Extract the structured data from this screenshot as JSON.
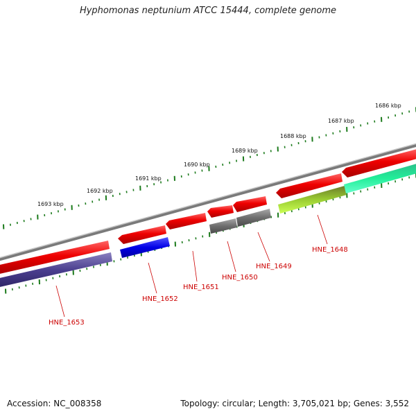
{
  "title": "Hyphomonas neptunium ATCC 15444, complete genome",
  "footer": {
    "accession": "Accession: NC_008358",
    "summary": "Topology: circular; Length: 3,705,021 bp; Genes: 3,552"
  },
  "colors": {
    "backbone": "#7a7a7a",
    "tick_ruler": "#1b7a1b",
    "label": "#cc0000"
  },
  "kbp_labels": [
    "1686 kbp",
    "1687 kbp",
    "1688 kbp",
    "1689 kbp",
    "1690 kbp",
    "1691 kbp",
    "1692 kbp",
    "1693 kbp"
  ],
  "genes": [
    {
      "id": "HNE_1653",
      "color": "#4b3f8f"
    },
    {
      "id": "HNE_1652",
      "color": "#0000e6"
    },
    {
      "id": "HNE_1651",
      "color": "#ee1111"
    },
    {
      "id": "HNE_1650",
      "color": "#6e6e6e"
    },
    {
      "id": "HNE_1649",
      "color": "#6e6e6e"
    },
    {
      "id": "HNE_1648",
      "color": "#9acd32"
    }
  ]
}
